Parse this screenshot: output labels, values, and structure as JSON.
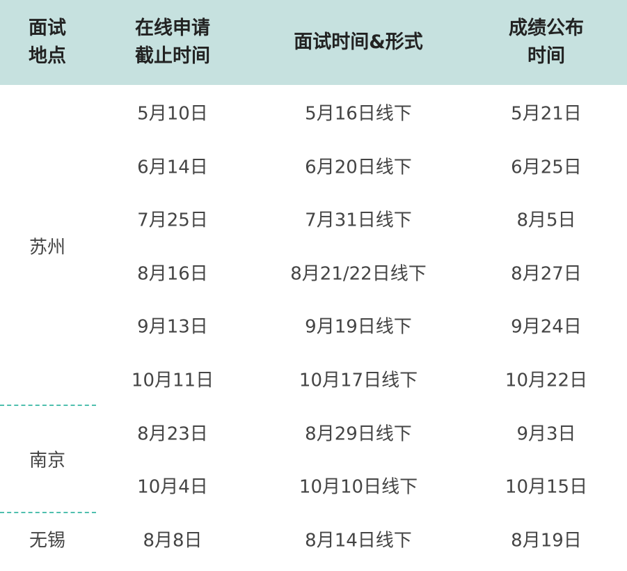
{
  "header": {
    "location": "面试\n地点",
    "deadline": "在线申请\n截止时间",
    "interview": "面试时间&形式",
    "result": "成绩公布时间"
  },
  "groups": [
    {
      "city": "苏州",
      "rows": [
        [
          "5月10日",
          "5月16日线下",
          "5月21日"
        ],
        [
          "6月14日",
          "6月20日线下",
          "6月25日"
        ],
        [
          "7月25日",
          "7月31日线下",
          "8月5日"
        ],
        [
          "8月16日",
          "8月21/22日线下",
          "8月27日"
        ],
        [
          "9月13日",
          "9月19日线下",
          "9月24日"
        ],
        [
          "10月11日",
          "10月17日线下",
          "10月22日"
        ]
      ]
    },
    {
      "city": "南京",
      "rows": [
        [
          "8月23日",
          "8月29日线下",
          "9月3日"
        ],
        [
          "10月4日",
          "10月10日线下",
          "10月15日"
        ]
      ]
    },
    {
      "city": "无锡",
      "rows": [
        [
          "8月8日",
          "8月14日线下",
          "8月19日"
        ]
      ]
    }
  ],
  "colors": {
    "header_bg": "#c6e1df",
    "divider": "#4fbfae",
    "text": "#444444"
  }
}
